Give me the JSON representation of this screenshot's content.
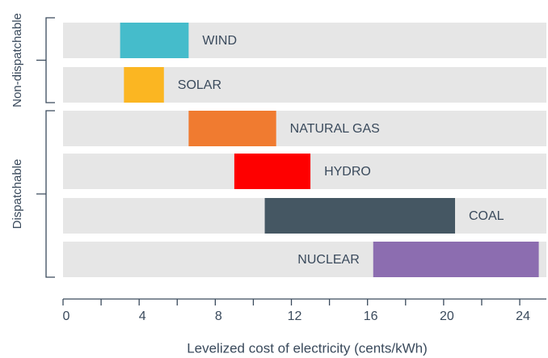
{
  "chart_data": {
    "type": "range_bar",
    "x_label": "Levelized cost of electricity (cents/kWh)",
    "categories": [
      "WIND",
      "SOLAR",
      "NATURAL GAS",
      "HYDRO",
      "COAL",
      "NUCLEAR"
    ],
    "low": [
      3.0,
      3.2,
      6.6,
      9.0,
      10.6,
      16.3
    ],
    "high": [
      6.6,
      5.3,
      11.2,
      13.0,
      20.6,
      25.0
    ],
    "colors": [
      "#45bccb",
      "#fbb622",
      "#f07b30",
      "#fe0000",
      "#455763",
      "#8c6db0"
    ],
    "groups": [
      {
        "name": "Non-dispatchable",
        "members": [
          0,
          1
        ]
      },
      {
        "name": "Dispatchable",
        "members": [
          2,
          3,
          4,
          5
        ]
      }
    ],
    "xlim": [
      0,
      25.4
    ],
    "xticks": [
      0,
      4,
      8,
      12,
      16,
      20,
      24
    ],
    "xminor_ticks": [
      2,
      6,
      10,
      14,
      18,
      22
    ]
  }
}
